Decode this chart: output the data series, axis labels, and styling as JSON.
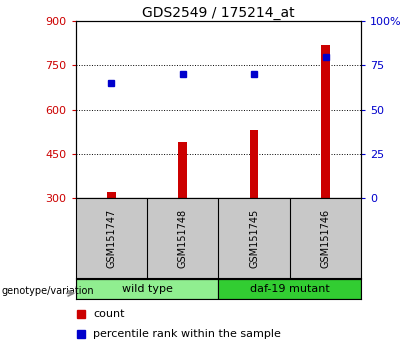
{
  "title": "GDS2549 / 175214_at",
  "samples": [
    "GSM151747",
    "GSM151748",
    "GSM151745",
    "GSM151746"
  ],
  "counts": [
    320,
    490,
    530,
    820
  ],
  "percentiles": [
    65,
    70,
    70,
    80
  ],
  "groups": [
    {
      "label": "wild type",
      "samples": [
        0,
        1
      ],
      "color": "#90ee90"
    },
    {
      "label": "daf-19 mutant",
      "samples": [
        2,
        3
      ],
      "color": "#32cd32"
    }
  ],
  "ylim_left": [
    300,
    900
  ],
  "ylim_right": [
    0,
    100
  ],
  "yticks_left": [
    300,
    450,
    600,
    750,
    900
  ],
  "yticks_right": [
    0,
    25,
    50,
    75,
    100
  ],
  "ytick_labels_right": [
    "0",
    "25",
    "50",
    "75",
    "100%"
  ],
  "bar_color": "#cc0000",
  "dot_color": "#0000cc",
  "left_axis_color": "#cc0000",
  "right_axis_color": "#0000cc",
  "legend_count_label": "count",
  "legend_pct_label": "percentile rank within the sample",
  "genotype_label": "genotype/variation"
}
